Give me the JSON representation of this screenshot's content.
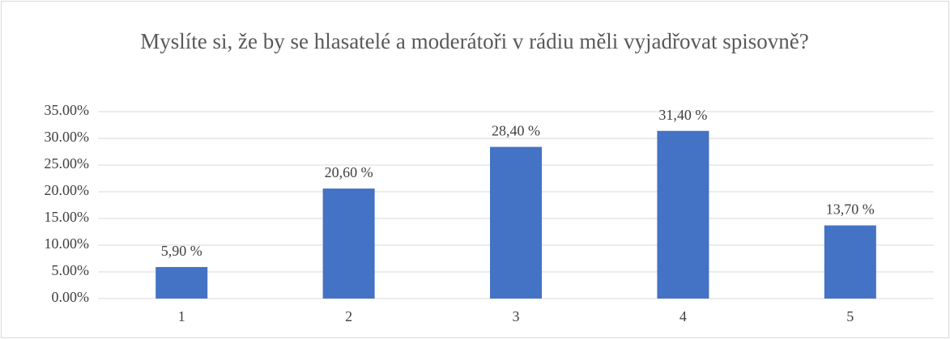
{
  "chart_data": {
    "type": "bar",
    "title": "Myslíte si, že by se hlasatelé a moderátoři v rádiu měli vyjadřovat spisovně?",
    "categories": [
      "1",
      "2",
      "3",
      "4",
      "5"
    ],
    "values": [
      5.9,
      20.6,
      28.4,
      31.4,
      13.7
    ],
    "value_labels": [
      "5,90 %",
      "20,60 %",
      "28,40 %",
      "31,40 %",
      "13,70 %"
    ],
    "color": "#4472c4",
    "ylim": [
      0,
      35
    ],
    "yticks": [
      {
        "value": 0,
        "label": "0.00%"
      },
      {
        "value": 5,
        "label": "5.00%"
      },
      {
        "value": 10,
        "label": "10.00%"
      },
      {
        "value": 15,
        "label": "15.00%"
      },
      {
        "value": 20,
        "label": "20.00%"
      },
      {
        "value": 25,
        "label": "25.00%"
      },
      {
        "value": 30,
        "label": "30.00%"
      },
      {
        "value": 35,
        "label": "35.00%"
      }
    ],
    "grid": true
  }
}
